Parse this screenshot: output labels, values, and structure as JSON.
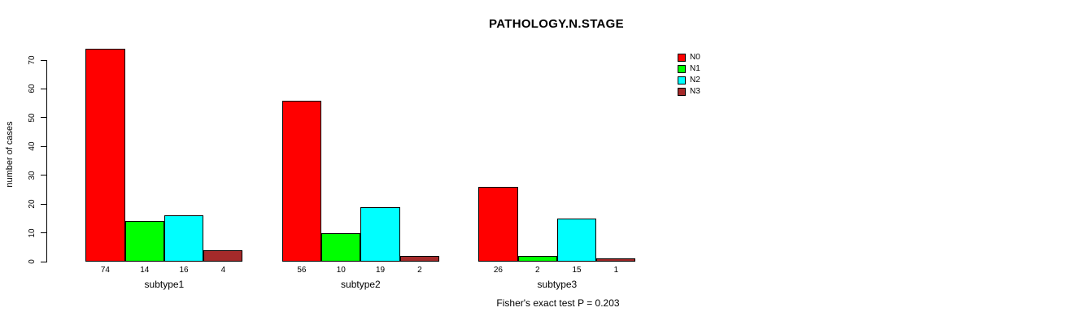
{
  "title": "PATHOLOGY.N.STAGE",
  "y_axis_label": "number of cases",
  "footer_note": "Fisher's exact test P = 0.203",
  "chart_data": {
    "type": "bar",
    "title": "PATHOLOGY.N.STAGE",
    "xlabel": "",
    "ylabel": "number of cases",
    "ylim": [
      0,
      70
    ],
    "yticks": [
      0,
      10,
      20,
      30,
      40,
      50,
      60,
      70
    ],
    "grid": false,
    "legend_position": "top-right-inside",
    "bar_value_labels_shown": true,
    "categories": [
      "subtype1",
      "subtype2",
      "subtype3"
    ],
    "series": [
      {
        "name": "N0",
        "color": "#ff0000",
        "values": [
          74,
          56,
          26
        ]
      },
      {
        "name": "N1",
        "color": "#00ff00",
        "values": [
          14,
          10,
          2
        ]
      },
      {
        "name": "N2",
        "color": "#00ffff",
        "values": [
          16,
          19,
          15
        ]
      },
      {
        "name": "N3",
        "color": "#a52a2a",
        "values": [
          4,
          2,
          1
        ]
      }
    ],
    "annotation": "Fisher's exact test P = 0.203"
  }
}
